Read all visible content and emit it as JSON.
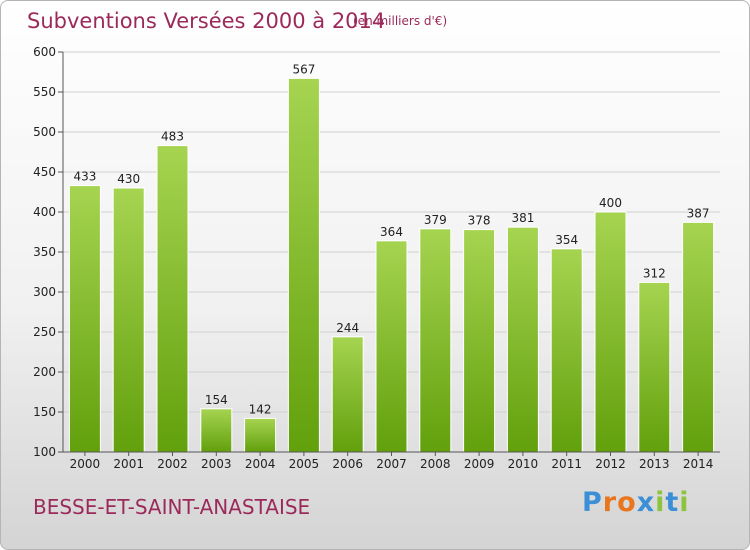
{
  "header": {
    "title": "Subventions Versées 2000 à 2014",
    "unit": "(en milliers d'€)"
  },
  "footer": {
    "town": "BESSE-ET-SAINT-ANASTAISE",
    "logo": "Proxiti"
  },
  "colors": {
    "title": "#9b2a5a",
    "bar_top": "#a6d451",
    "bar_bottom": "#62a00c",
    "grid": "#d0d0d0",
    "logo": [
      "#3a8fd6",
      "#e8761e",
      "#e8761e",
      "#3a8fd6",
      "#8cc43f",
      "#3a8fd6",
      "#8cc43f"
    ]
  },
  "chart_data": {
    "type": "bar",
    "title": "Subventions Versées 2000 à 2014",
    "subtitle": "(en milliers d'€)",
    "xlabel": "",
    "ylabel": "",
    "categories": [
      "2000",
      "2001",
      "2002",
      "2003",
      "2004",
      "2005",
      "2006",
      "2007",
      "2008",
      "2009",
      "2010",
      "2011",
      "2012",
      "2013",
      "2014"
    ],
    "values": [
      433,
      430,
      483,
      154,
      142,
      567,
      244,
      364,
      379,
      378,
      381,
      354,
      400,
      312,
      387
    ],
    "ylim": [
      100,
      600
    ],
    "yticks": [
      100,
      150,
      200,
      250,
      300,
      350,
      400,
      450,
      500,
      550,
      600
    ],
    "grid": true,
    "legend": "none"
  }
}
